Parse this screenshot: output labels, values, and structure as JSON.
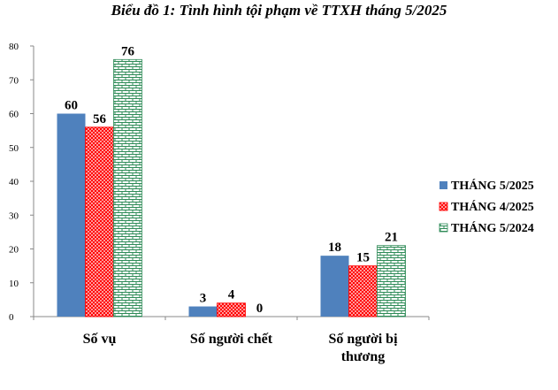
{
  "chart_data": {
    "type": "bar",
    "title": "Biểu đồ 1: Tình hình tội phạm về TTXH tháng 5/2025",
    "categories": [
      "Số vụ",
      "Số người chết",
      "Số người bị thương"
    ],
    "category_lines": [
      [
        "Số vụ"
      ],
      [
        "Số người chết"
      ],
      [
        "Số người bị",
        "thương"
      ]
    ],
    "series": [
      {
        "name": "THÁNG 5/2025",
        "values": [
          60,
          3,
          18
        ],
        "color": "#4f81bd",
        "pattern": "solid"
      },
      {
        "name": "THÁNG 4/2025",
        "values": [
          56,
          4,
          15
        ],
        "color": "#ff0000",
        "pattern": "cross"
      },
      {
        "name": "THÁNG 5/2024",
        "values": [
          76,
          0,
          21
        ],
        "color": "#2e8b57",
        "pattern": "bricks"
      }
    ],
    "yticks": [
      0,
      10,
      20,
      30,
      40,
      50,
      60,
      70,
      80
    ],
    "ylim": [
      0,
      80
    ],
    "xlabel": "",
    "ylabel": "",
    "grid": false,
    "legend_position": "right"
  }
}
